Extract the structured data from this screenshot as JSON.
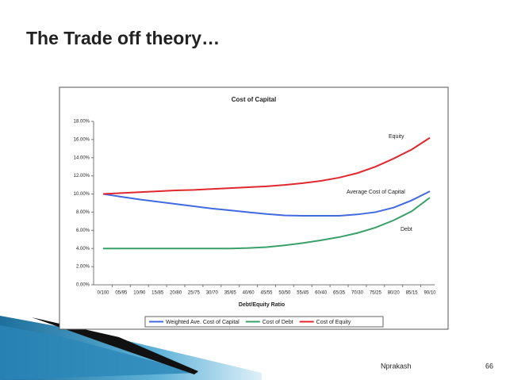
{
  "slide": {
    "title": "The Trade off theory…",
    "author": "Nprakash",
    "page": "66"
  },
  "chart_data": {
    "type": "line",
    "title": "Cost of Capital",
    "x_label": "Debt/Equity Ratio",
    "categories": [
      "0/100",
      "05/95",
      "10/90",
      "15/85",
      "20/80",
      "25/75",
      "30/70",
      "35/65",
      "40/60",
      "45/55",
      "50/50",
      "55/45",
      "60/40",
      "65/35",
      "70/30",
      "75/25",
      "80/20",
      "85/15",
      "90/10"
    ],
    "series": [
      {
        "name": "Weighted Ave. Cost of Capital",
        "color": "#4169e1",
        "values": [
          10.0,
          9.7,
          9.4,
          9.15,
          8.9,
          8.65,
          8.4,
          8.2,
          8.0,
          7.8,
          7.65,
          7.6,
          7.6,
          7.6,
          7.75,
          8.0,
          8.5,
          9.3,
          10.3
        ]
      },
      {
        "name": "Cost of Debt",
        "color": "#3aa06a",
        "values": [
          4.0,
          4.0,
          4.0,
          4.0,
          4.0,
          4.0,
          4.0,
          4.0,
          4.05,
          4.15,
          4.35,
          4.6,
          4.9,
          5.25,
          5.7,
          6.3,
          7.1,
          8.1,
          9.6
        ]
      },
      {
        "name": "Cost of Equity",
        "color": "#e0282e",
        "values": [
          10.0,
          10.1,
          10.2,
          10.3,
          10.4,
          10.45,
          10.55,
          10.65,
          10.75,
          10.85,
          11.0,
          11.2,
          11.45,
          11.8,
          12.3,
          13.0,
          13.9,
          14.9,
          16.2
        ]
      }
    ],
    "annotations": [
      "Equity",
      "Average Cost of Capital",
      "Debt"
    ],
    "ylim": [
      0,
      18
    ],
    "yticks": [
      {
        "value": 0,
        "label": "0.00%"
      },
      {
        "value": 2,
        "label": "2.00%"
      },
      {
        "value": 4,
        "label": "4.00%"
      },
      {
        "value": 6,
        "label": "6.00%"
      },
      {
        "value": 8,
        "label": "8.00%"
      },
      {
        "value": 10,
        "label": "10.00%"
      },
      {
        "value": 12,
        "label": "12.00%"
      },
      {
        "value": 14,
        "label": "14.00%"
      },
      {
        "value": 16,
        "label": "16.00%"
      },
      {
        "value": 18,
        "label": "18.00%"
      }
    ],
    "grid": false,
    "legend": "bottom"
  }
}
